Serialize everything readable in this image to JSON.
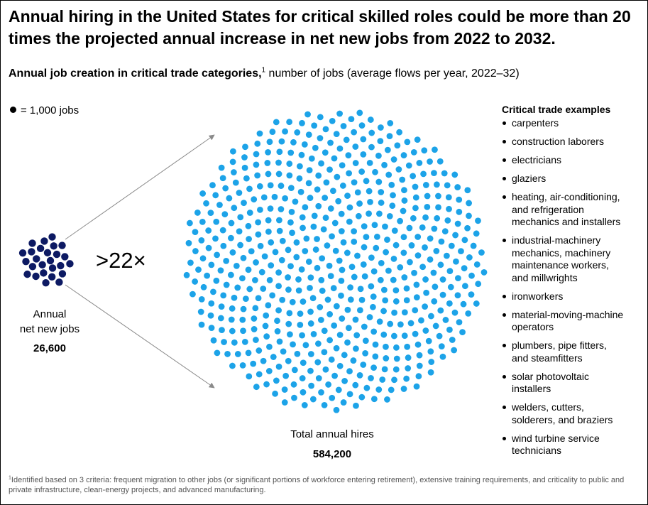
{
  "headline": "Annual hiring in the United States for critical skilled roles could be more than 20 times the projected annual increase in net new jobs from 2022 to 2032.",
  "subtitle": {
    "bold": "Annual job creation in critical trade categories,",
    "marker": "1",
    "rest": " number of jobs (average flows per year, 2022–32)"
  },
  "legend": {
    "symbol_label": "= 1,000 jobs"
  },
  "chart_data": {
    "type": "dot-comparison",
    "unit_per_dot": 1000,
    "series": [
      {
        "label": "Annual net new jobs",
        "value_label": "26,600",
        "value": 26600,
        "dots": 26,
        "color": "#0d1a63"
      },
      {
        "label": "Total annual hires",
        "value_label": "584,200",
        "value": 584200,
        "dots": 584,
        "color": "#1ca3e8"
      }
    ],
    "annotation": ">22×",
    "connector_color": "#8a8a8a"
  },
  "small": {
    "label_line1": "Annual",
    "label_line2": "net new jobs"
  },
  "examples": {
    "title": "Critical trade examples",
    "items": [
      {
        "lines": [
          "carpenters"
        ]
      },
      {
        "lines": [
          "construction laborers"
        ]
      },
      {
        "lines": [
          "electricians"
        ]
      },
      {
        "lines": [
          "glaziers"
        ]
      },
      {
        "lines": [
          "heating, air-conditioning,",
          "and refrigeration",
          "mechanics and installers"
        ]
      },
      {
        "lines": [
          "industrial-machinery",
          "mechanics, machinery",
          "maintenance workers,",
          "and millwrights"
        ]
      },
      {
        "lines": [
          "ironworkers"
        ]
      },
      {
        "lines": [
          "material-moving-machine",
          "operators"
        ]
      },
      {
        "lines": [
          "plumbers, pipe fitters,",
          "and steamfitters"
        ]
      },
      {
        "lines": [
          "solar photovoltaic",
          "installers"
        ]
      },
      {
        "lines": [
          "welders, cutters,",
          "solderers, and braziers"
        ]
      },
      {
        "lines": [
          "wind turbine service",
          "technicians"
        ]
      }
    ]
  },
  "footnote": {
    "marker": "1",
    "text": "Identified based on 3 criteria: frequent migration to other jobs (or significant portions of workforce entering retirement), extensive training requirements, and criticality to public and private infrastructure, clean-energy projects, and advanced manufacturing."
  }
}
